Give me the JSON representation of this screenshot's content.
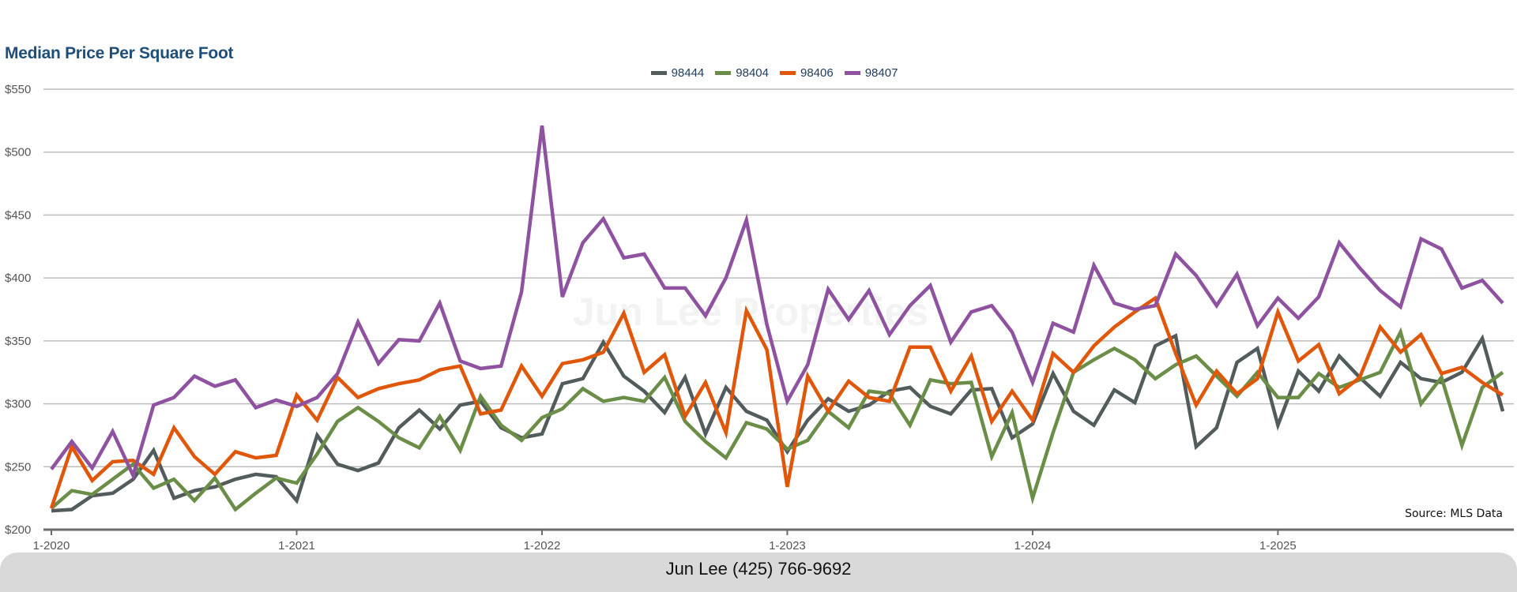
{
  "chart_data": {
    "type": "line",
    "title": "Median Price Per Square Foot",
    "source": "Source: MLS Data",
    "watermark": "Jun Lee Properties",
    "x_start": "1-2020",
    "x_ticks": [
      "1-2020",
      "1-2021",
      "1-2022",
      "1-2023",
      "1-2024",
      "1-2025"
    ],
    "y_ticks": [
      "$200",
      "$250",
      "$300",
      "$350",
      "$400",
      "$450",
      "$500",
      "$550"
    ],
    "ylim": [
      200,
      550
    ],
    "grid": true,
    "legend": "top-center",
    "series": [
      {
        "name": "98444",
        "color": "#535c5c",
        "values": [
          215,
          216,
          227,
          229,
          240,
          263,
          225,
          231,
          234,
          240,
          244,
          242,
          223,
          275,
          252,
          247,
          253,
          281,
          295,
          280,
          299,
          302,
          281,
          273,
          276,
          316,
          320,
          349,
          322,
          310,
          293,
          321,
          276,
          313,
          294,
          287,
          262,
          287,
          304,
          294,
          299,
          310,
          313,
          298,
          292,
          311,
          312,
          273,
          284,
          324,
          294,
          283,
          311,
          301,
          346,
          354,
          266,
          281,
          333,
          344,
          283,
          326,
          310,
          338,
          321,
          306,
          333,
          320,
          317,
          325,
          352,
          294
        ]
      },
      {
        "name": "98404",
        "color": "#6a8e47",
        "values": [
          217,
          231,
          228,
          240,
          252,
          233,
          240,
          223,
          241,
          216,
          229,
          241,
          237,
          260,
          286,
          297,
          286,
          273,
          265,
          290,
          263,
          306,
          283,
          271,
          289,
          296,
          312,
          302,
          305,
          302,
          321,
          286,
          270,
          257,
          285,
          280,
          264,
          271,
          294,
          281,
          310,
          308,
          283,
          319,
          316,
          317,
          258,
          293,
          225,
          277,
          325,
          335,
          344,
          335,
          320,
          331,
          338,
          322,
          306,
          325,
          305,
          305,
          324,
          313,
          319,
          325,
          357,
          300,
          321,
          267,
          313,
          325
        ]
      },
      {
        "name": "98406",
        "color": "#e0570a",
        "values": [
          217,
          266,
          239,
          254,
          255,
          244,
          281,
          258,
          244,
          262,
          257,
          259,
          307,
          287,
          321,
          305,
          312,
          316,
          319,
          327,
          330,
          292,
          295,
          330,
          306,
          332,
          335,
          341,
          372,
          325,
          339,
          290,
          317,
          277,
          374,
          343,
          234,
          322,
          294,
          318,
          305,
          302,
          345,
          345,
          310,
          338,
          286,
          310,
          287,
          340,
          325,
          346,
          361,
          373,
          384,
          340,
          299,
          326,
          308,
          320,
          373,
          334,
          347,
          308,
          321,
          361,
          341,
          355,
          324,
          329,
          317,
          307
        ]
      },
      {
        "name": "98407",
        "color": "#8e52a1",
        "values": [
          248,
          270,
          249,
          278,
          243,
          299,
          305,
          322,
          314,
          319,
          297,
          303,
          298,
          305,
          324,
          365,
          332,
          351,
          350,
          380,
          334,
          328,
          330,
          389,
          521,
          385,
          428,
          447,
          416,
          419,
          392,
          392,
          370,
          400,
          446,
          363,
          302,
          331,
          391,
          367,
          390,
          355,
          378,
          394,
          349,
          373,
          378,
          357,
          317,
          364,
          357,
          410,
          380,
          375,
          378,
          419,
          402,
          378,
          403,
          362,
          384,
          368,
          385,
          428,
          408,
          390,
          377,
          431,
          423,
          392,
          398,
          380
        ]
      }
    ]
  },
  "footer": {
    "contact": "Jun Lee (425) 766-9692"
  }
}
